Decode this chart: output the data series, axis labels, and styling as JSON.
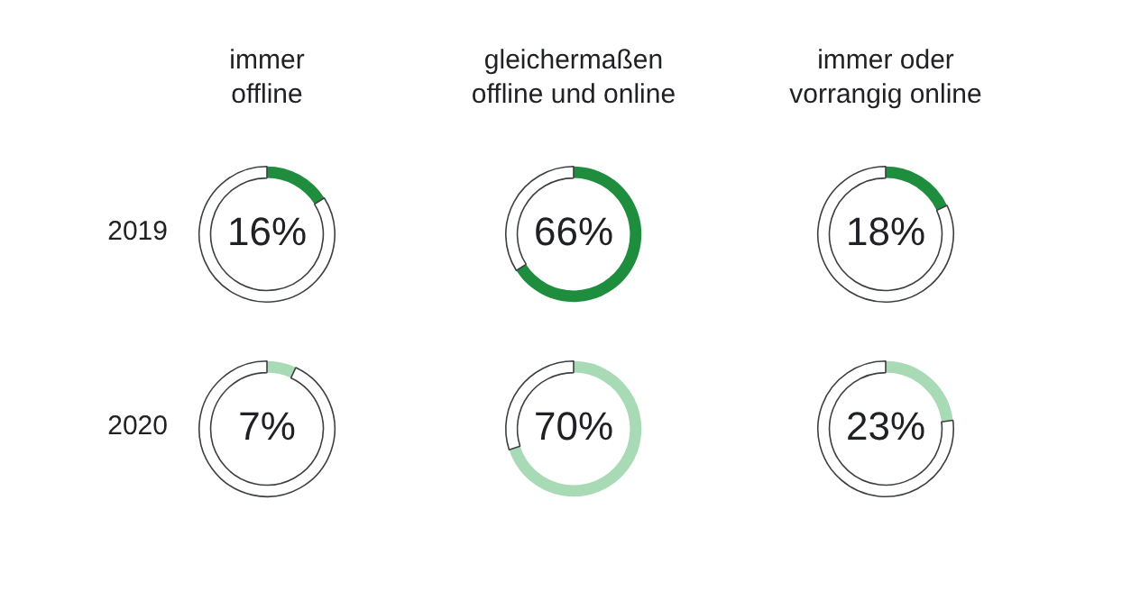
{
  "chart_data": [
    {
      "type": "donut",
      "title": "immer\noffline",
      "ylabel": "2019",
      "categories": [
        null,
        null
      ],
      "values": [
        16,
        84
      ],
      "colors": [
        "#1e8e3e",
        "#ffffff"
      ],
      "value_labels": [
        "16%",
        null
      ]
    },
    {
      "type": "donut",
      "title": "gleichermaßen\noffline und online",
      "categories": [
        null,
        null
      ],
      "values": [
        66,
        34
      ],
      "colors": [
        "#1e8e3e",
        "#ffffff"
      ],
      "value_labels": [
        "66%",
        null
      ]
    },
    {
      "type": "donut",
      "title": "immer oder\nvorrangig online",
      "categories": [
        null,
        null
      ],
      "values": [
        18,
        82
      ],
      "colors": [
        "#1e8e3e",
        "#ffffff"
      ],
      "value_labels": [
        "18%",
        null
      ]
    },
    {
      "type": "donut",
      "ylabel": "2020",
      "categories": [
        null,
        null
      ],
      "values": [
        7,
        93
      ],
      "colors": [
        "#a8dab5",
        "#ffffff"
      ],
      "value_labels": [
        "7%",
        null
      ]
    },
    {
      "type": "donut",
      "categories": [
        null,
        null
      ],
      "values": [
        70,
        30
      ],
      "colors": [
        "#a8dab5",
        "#ffffff"
      ],
      "value_labels": [
        "70%",
        null
      ]
    },
    {
      "type": "donut",
      "categories": [
        null,
        null
      ],
      "values": [
        23,
        77
      ],
      "colors": [
        "#a8dab5",
        "#ffffff"
      ],
      "value_labels": [
        "23%",
        null
      ]
    }
  ]
}
